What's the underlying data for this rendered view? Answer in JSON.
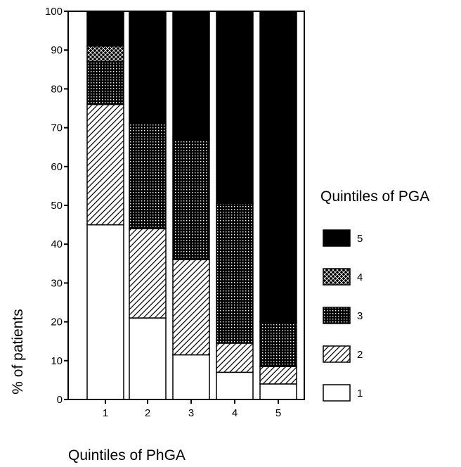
{
  "chart_data": {
    "type": "bar",
    "stacked": true,
    "percent_stacked": true,
    "categories": [
      "1",
      "2",
      "3",
      "4",
      "5"
    ],
    "series": [
      {
        "name": "1",
        "values": [
          45,
          21,
          11.5,
          7,
          4
        ]
      },
      {
        "name": "2",
        "values": [
          31,
          23,
          24.5,
          7.5,
          4.5
        ]
      },
      {
        "name": "3",
        "values": [
          11,
          27,
          31,
          36,
          11.5
        ]
      },
      {
        "name": "4",
        "values": [
          4,
          0,
          0,
          0,
          0
        ]
      },
      {
        "name": "5",
        "values": [
          9,
          29,
          33,
          49.5,
          80
        ]
      }
    ],
    "xlabel": "Quintiles of PhGA",
    "ylabel": "% of patients",
    "ylim": [
      0,
      100
    ],
    "yticks": [
      0,
      10,
      20,
      30,
      40,
      50,
      60,
      70,
      80,
      90,
      100
    ],
    "grid": false,
    "legend": {
      "title": "Quintiles of PGA",
      "position": "right",
      "order": [
        "5",
        "4",
        "3",
        "2",
        "1"
      ]
    },
    "series_styles": {
      "1": {
        "pattern": "blank"
      },
      "2": {
        "pattern": "hatch"
      },
      "3": {
        "pattern": "dots"
      },
      "4": {
        "pattern": "crosshatch"
      },
      "5": {
        "pattern": "solid"
      }
    },
    "colors": {
      "ink": "#000000",
      "paper": "#ffffff"
    }
  }
}
